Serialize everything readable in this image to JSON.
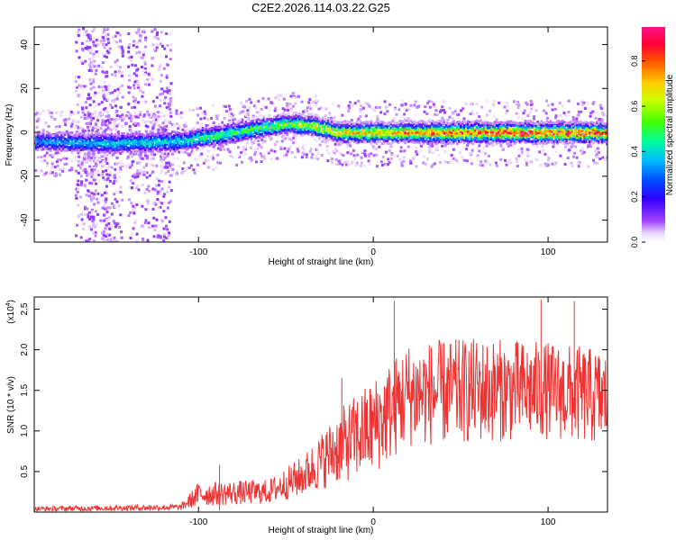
{
  "title": "C2E2.2026.114.03.22.G25",
  "colors": {
    "snr_line": "#ee3333",
    "background": "#ffffff",
    "axis": "#000000"
  },
  "chart_data": [
    {
      "type": "heatmap",
      "name": "spectrogram",
      "xlabel": "Height of straight line (km)",
      "ylabel": "Frequency (Hz)",
      "xlim": [
        -194,
        134
      ],
      "ylim": [
        -50,
        48
      ],
      "x_ticks": [
        -100,
        0,
        100
      ],
      "x_tick_labels": [
        "-100",
        "0",
        "100"
      ],
      "y_ticks": [
        -40,
        -20,
        0,
        20,
        40
      ],
      "y_tick_labels": [
        "-40",
        "-20",
        "0",
        "20",
        "40"
      ],
      "colorbar": {
        "label": "Normalized spectral amplitude",
        "range": [
          0,
          0.95
        ],
        "ticks": [
          0,
          0.2,
          0.4,
          0.6,
          0.8
        ],
        "tick_labels": [
          "0.0",
          "0.2",
          "0.4",
          "0.6",
          "0.8"
        ]
      },
      "ridge": {
        "description_points": [
          {
            "height_km": -194,
            "freq_hz": -4
          },
          {
            "height_km": -150,
            "freq_hz": -5
          },
          {
            "height_km": -110,
            "freq_hz": -4
          },
          {
            "height_km": -80,
            "freq_hz": 0
          },
          {
            "height_km": -50,
            "freq_hz": 4
          },
          {
            "height_km": -35,
            "freq_hz": 3
          },
          {
            "height_km": -20,
            "freq_hz": 0
          },
          {
            "height_km": 0,
            "freq_hz": 0
          },
          {
            "height_km": 134,
            "freq_hz": 0
          }
        ],
        "amplitude_points": [
          {
            "height_km": -194,
            "amp": 0.35
          },
          {
            "height_km": -120,
            "amp": 0.45
          },
          {
            "height_km": -60,
            "amp": 0.55
          },
          {
            "height_km": -20,
            "amp": 0.7
          },
          {
            "height_km": 20,
            "amp": 0.8
          },
          {
            "height_km": 60,
            "amp": 0.9
          },
          {
            "height_km": 134,
            "amp": 0.85
          }
        ]
      }
    },
    {
      "type": "line",
      "name": "snr",
      "xlabel": "Height of straight line (km)",
      "ylabel": "SNR (10 * v/v)",
      "multiplier_label": "(x10",
      "multiplier_exponent": "4",
      "xlim": [
        -194,
        134
      ],
      "ylim": [
        0,
        2.65
      ],
      "x_ticks": [
        -100,
        0,
        100
      ],
      "x_tick_labels": [
        "-100",
        "0",
        "100"
      ],
      "y_ticks": [
        0.5,
        1.0,
        1.5,
        2.0,
        2.5
      ],
      "y_tick_labels": [
        "0.5",
        "1.0",
        "1.5",
        "2.0",
        "2.5"
      ],
      "envelope": [
        {
          "height_km": -194,
          "mean": 0.04,
          "spread": 0.03
        },
        {
          "height_km": -110,
          "mean": 0.06,
          "spread": 0.04
        },
        {
          "height_km": -100,
          "mean": 0.22,
          "spread": 0.15
        },
        {
          "height_km": -60,
          "mean": 0.25,
          "spread": 0.15
        },
        {
          "height_km": -40,
          "mean": 0.45,
          "spread": 0.25
        },
        {
          "height_km": -20,
          "mean": 0.8,
          "spread": 0.45
        },
        {
          "height_km": 0,
          "mean": 1.05,
          "spread": 0.6
        },
        {
          "height_km": 20,
          "mean": 1.45,
          "spread": 0.65
        },
        {
          "height_km": 60,
          "mean": 1.5,
          "spread": 0.65
        },
        {
          "height_km": 100,
          "mean": 1.5,
          "spread": 0.6
        },
        {
          "height_km": 134,
          "mean": 1.4,
          "spread": 0.6
        }
      ],
      "peaks": [
        {
          "height_km": 12,
          "value": 2.6
        },
        {
          "height_km": 96,
          "value": 2.62
        },
        {
          "height_km": 115,
          "value": 2.6
        },
        {
          "height_km": -18,
          "value": 1.65
        },
        {
          "height_km": -88,
          "value": 0.58
        }
      ]
    }
  ]
}
